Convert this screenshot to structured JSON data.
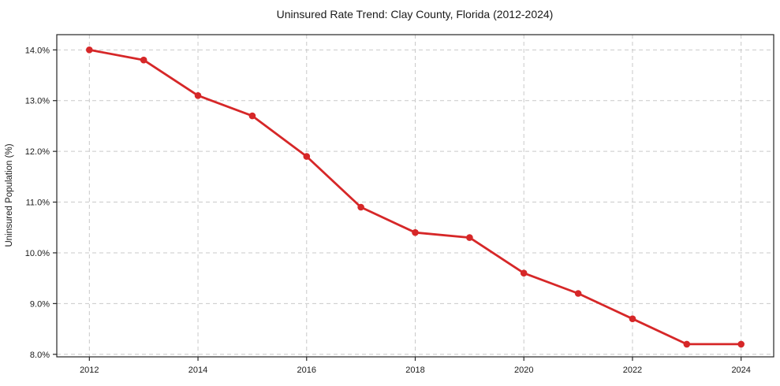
{
  "chart_data": {
    "type": "line",
    "title": "Uninsured Rate Trend: Clay County, Florida (2012-2024)",
    "xlabel": "",
    "ylabel": "Uninsured Population (%)",
    "x": [
      2012,
      2013,
      2014,
      2015,
      2016,
      2017,
      2018,
      2019,
      2020,
      2021,
      2022,
      2023,
      2024
    ],
    "values": [
      14.0,
      13.8,
      13.1,
      12.7,
      11.9,
      10.9,
      10.4,
      10.3,
      9.6,
      9.2,
      8.7,
      8.2,
      8.2
    ],
    "x_tick_values": [
      2012,
      2014,
      2016,
      2018,
      2020,
      2022,
      2024
    ],
    "x_tick_labels": [
      "2012",
      "2014",
      "2016",
      "2018",
      "2020",
      "2022",
      "2024"
    ],
    "y_tick_values": [
      8,
      9,
      10,
      11,
      12,
      13,
      14
    ],
    "y_tick_labels": [
      "8.0%",
      "9.0%",
      "10.0%",
      "11.0%",
      "12.0%",
      "13.0%",
      "14.0%"
    ],
    "xlim": [
      2011.4,
      2024.6
    ],
    "ylim": [
      7.95,
      14.3
    ],
    "grid": true,
    "legend": "none",
    "line_color": "#d62728",
    "marker": "circle",
    "background": "#ffffff"
  }
}
